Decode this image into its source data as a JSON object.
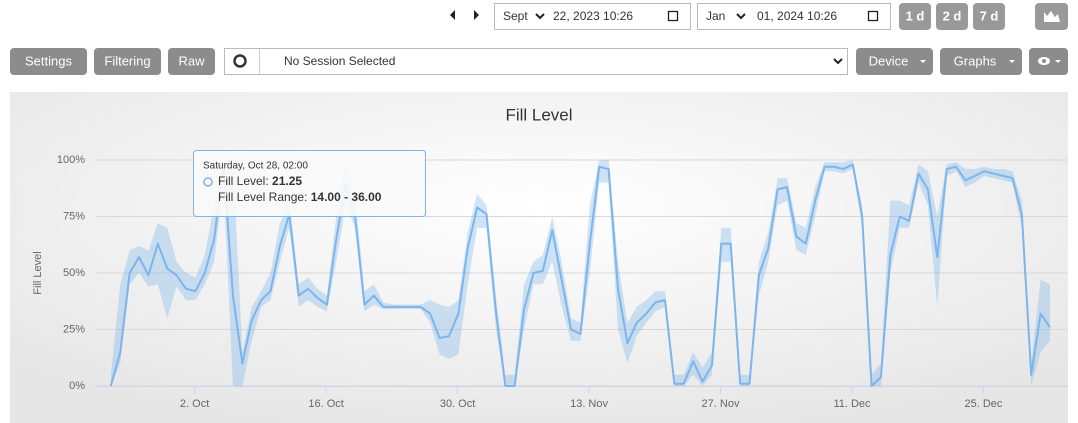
{
  "toolbar": {
    "start_month": "Sept",
    "start_date": "22, 2023 10:26",
    "end_month": "Jan",
    "end_date": "01, 2024 10:26",
    "ranges": [
      "1 d",
      "2 d",
      "7 d"
    ]
  },
  "controls": {
    "buttons": [
      "Settings",
      "Filtering",
      "Raw"
    ],
    "session": "No Session Selected",
    "menus": [
      "Device",
      "Graphs"
    ]
  },
  "chart_data": {
    "type": "arearange-line",
    "title": "Fill Level",
    "y_label": "Fill Level",
    "color": "#7cb5ec",
    "range_color": "rgba(124,181,236,0.35)",
    "grid": true,
    "xlim": [
      "2023-09-21T12:00",
      "2024-01-03T00:00"
    ],
    "xticks": [
      {
        "value": "2023-10-02T00:00",
        "label": "2. Oct"
      },
      {
        "value": "2023-10-16T00:00",
        "label": "16. Oct"
      },
      {
        "value": "2023-10-30T00:00",
        "label": "30. Oct"
      },
      {
        "value": "2023-11-13T00:00",
        "label": "13. Nov"
      },
      {
        "value": "2023-11-27T00:00",
        "label": "27. Nov"
      },
      {
        "value": "2023-12-11T00:00",
        "label": "11. Dec"
      },
      {
        "value": "2023-12-25T00:00",
        "label": "25. Dec"
      }
    ],
    "ylim": [
      0,
      100
    ],
    "yticks": [
      {
        "value": 0,
        "label": "0%"
      },
      {
        "value": 25,
        "label": "25%"
      },
      {
        "value": 50,
        "label": "50%"
      },
      {
        "value": 75,
        "label": "75%"
      },
      {
        "value": 100,
        "label": "100%"
      }
    ],
    "x": [
      "2023-09-23T02:00",
      "2023-09-24T02:00",
      "2023-09-25T02:00",
      "2023-09-26T02:00",
      "2023-09-27T02:00",
      "2023-09-28T02:00",
      "2023-09-29T02:00",
      "2023-09-30T02:00",
      "2023-10-01T02:00",
      "2023-10-02T02:00",
      "2023-10-03T02:00",
      "2023-10-04T02:00",
      "2023-10-05T02:00",
      "2023-10-06T02:00",
      "2023-10-07T02:00",
      "2023-10-08T02:00",
      "2023-10-09T02:00",
      "2023-10-10T02:00",
      "2023-10-11T02:00",
      "2023-10-12T02:00",
      "2023-10-13T02:00",
      "2023-10-14T02:00",
      "2023-10-15T02:00",
      "2023-10-16T02:00",
      "2023-10-17T02:00",
      "2023-10-18T02:00",
      "2023-10-19T02:00",
      "2023-10-20T02:00",
      "2023-10-21T02:00",
      "2023-10-22T02:00",
      "2023-10-23T02:00",
      "2023-10-24T02:00",
      "2023-10-25T02:00",
      "2023-10-26T02:00",
      "2023-10-27T02:00",
      "2023-10-28T02:00",
      "2023-10-29T02:00",
      "2023-10-30T02:00",
      "2023-10-31T02:00",
      "2023-11-01T02:00",
      "2023-11-02T02:00",
      "2023-11-03T02:00",
      "2023-11-04T02:00",
      "2023-11-05T02:00",
      "2023-11-06T02:00",
      "2023-11-07T02:00",
      "2023-11-08T02:00",
      "2023-11-09T02:00",
      "2023-11-10T02:00",
      "2023-11-11T02:00",
      "2023-11-12T02:00",
      "2023-11-13T02:00",
      "2023-11-14T02:00",
      "2023-11-15T02:00",
      "2023-11-16T02:00",
      "2023-11-17T02:00",
      "2023-11-18T02:00",
      "2023-11-19T02:00",
      "2023-11-20T02:00",
      "2023-11-21T02:00",
      "2023-11-22T02:00",
      "2023-11-23T02:00",
      "2023-11-24T02:00",
      "2023-11-25T02:00",
      "2023-11-26T02:00",
      "2023-11-27T02:00",
      "2023-11-28T02:00",
      "2023-11-29T02:00",
      "2023-11-30T02:00",
      "2023-12-01T02:00",
      "2023-12-02T02:00",
      "2023-12-03T02:00",
      "2023-12-04T02:00",
      "2023-12-05T02:00",
      "2023-12-06T02:00",
      "2023-12-07T02:00",
      "2023-12-08T02:00",
      "2023-12-09T02:00",
      "2023-12-10T02:00",
      "2023-12-11T02:00",
      "2023-12-12T02:00",
      "2023-12-13T02:00",
      "2023-12-14T02:00",
      "2023-12-15T02:00",
      "2023-12-16T02:00",
      "2023-12-17T02:00",
      "2023-12-18T02:00",
      "2023-12-19T02:00",
      "2023-12-20T02:00",
      "2023-12-21T02:00",
      "2023-12-22T02:00",
      "2023-12-23T02:00",
      "2023-12-24T02:00",
      "2023-12-25T02:00",
      "2023-12-26T02:00",
      "2023-12-27T02:00",
      "2023-12-28T02:00",
      "2023-12-29T02:00",
      "2023-12-30T02:00",
      "2023-12-31T02:00",
      "2024-01-01T02:00"
    ],
    "series": [
      {
        "name": "Fill Level",
        "values": [
          0,
          15,
          50,
          57,
          49,
          63,
          52,
          49,
          43,
          42,
          50,
          65,
          98,
          40,
          10,
          29,
          38,
          42,
          62,
          76,
          40,
          43,
          39,
          36,
          65,
          89,
          75,
          36,
          40,
          35,
          35,
          35,
          35,
          35,
          32,
          21.25,
          22,
          32,
          61,
          79,
          76,
          33,
          0,
          0,
          34,
          50,
          51,
          69,
          47,
          25,
          23,
          63,
          97,
          96,
          43,
          19,
          28,
          32,
          37,
          38,
          1,
          1,
          11,
          2,
          9,
          63,
          63,
          1,
          1,
          49,
          61,
          87,
          88,
          66,
          63,
          82,
          97,
          97,
          96,
          98,
          75,
          0,
          4,
          58,
          75,
          73,
          94,
          87,
          57,
          96,
          97,
          91,
          93,
          95,
          94,
          93,
          92,
          76,
          5,
          32,
          26
        ]
      }
    ],
    "range": {
      "name": "Fill Level Range",
      "low": [
        0,
        10,
        45,
        50,
        44,
        45,
        30,
        44,
        38,
        38,
        45,
        55,
        90,
        0,
        0,
        20,
        35,
        38,
        55,
        70,
        35,
        38,
        35,
        33,
        55,
        80,
        70,
        33,
        36,
        34,
        34,
        34,
        34,
        34,
        28,
        14,
        12,
        14,
        45,
        70,
        70,
        25,
        0,
        0,
        25,
        45,
        45,
        55,
        35,
        20,
        20,
        50,
        90,
        90,
        25,
        10,
        22,
        28,
        33,
        35,
        0,
        0,
        5,
        0,
        5,
        55,
        55,
        0,
        0,
        40,
        55,
        80,
        82,
        60,
        58,
        75,
        95,
        95,
        94,
        96,
        70,
        0,
        0,
        50,
        70,
        70,
        90,
        80,
        35,
        93,
        95,
        88,
        90,
        93,
        92,
        91,
        90,
        70,
        0,
        15,
        20
      ],
      "high": [
        5,
        45,
        60,
        62,
        60,
        72,
        70,
        55,
        50,
        48,
        58,
        80,
        100,
        100,
        15,
        35,
        42,
        50,
        72,
        82,
        45,
        48,
        43,
        40,
        75,
        100,
        85,
        42,
        45,
        37,
        36,
        36,
        36,
        36,
        38,
        36,
        35,
        38,
        68,
        85,
        80,
        40,
        5,
        5,
        45,
        55,
        58,
        75,
        55,
        30,
        28,
        80,
        100,
        100,
        55,
        28,
        35,
        38,
        42,
        42,
        5,
        5,
        15,
        8,
        15,
        70,
        70,
        5,
        5,
        55,
        68,
        92,
        92,
        72,
        70,
        88,
        99,
        99,
        99,
        100,
        80,
        5,
        10,
        82,
        82,
        80,
        98,
        95,
        75,
        98,
        99,
        96,
        96,
        97,
        96,
        96,
        95,
        82,
        10,
        47,
        45
      ]
    },
    "tooltip": {
      "date": "Saturday, Oct 28, 02:00",
      "name": "Fill Level: ",
      "value": "21.25",
      "range_name": "Fill Level Range: ",
      "range": "14.00 - 36.00"
    }
  }
}
